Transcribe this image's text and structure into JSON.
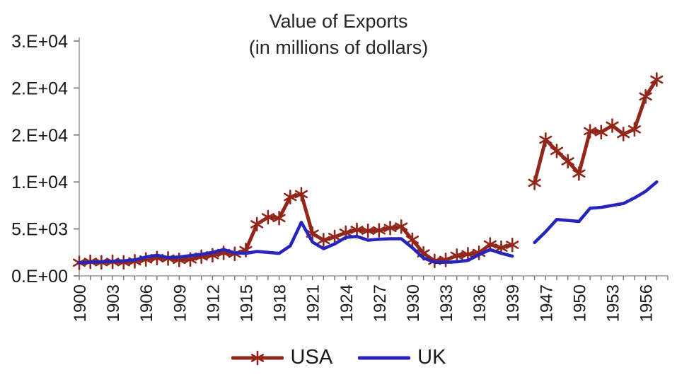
{
  "title": {
    "line1": "Value of Exports",
    "line2": "(in millions of dollars)"
  },
  "legend": [
    {
      "label": "USA",
      "color": "#93261A",
      "marker": "star"
    },
    {
      "label": "UK",
      "color": "#2525BE",
      "marker": "line"
    }
  ],
  "colors": {
    "usa_series": "#93261A",
    "uk_series": "#2525BE",
    "axis_line": "#9a9a9a",
    "tick_mark": "#777777",
    "label_text": "#1a1a1a"
  },
  "chart_data": {
    "type": "line",
    "title": "Value of Exports",
    "subtitle": "(in millions of dollars)",
    "xlabel": "",
    "ylabel": "",
    "grid": false,
    "legend_position": "bottom-center",
    "x_label_every": 3,
    "x_categories": [
      "1900",
      "1901",
      "1902",
      "1903",
      "1904",
      "1905",
      "1906",
      "1907",
      "1908",
      "1909",
      "1910",
      "1911",
      "1912",
      "1913",
      "1914",
      "1915",
      "1916",
      "1917",
      "1918",
      "1919",
      "1920",
      "1921",
      "1922",
      "1923",
      "1924",
      "1925",
      "1926",
      "1927",
      "1928",
      "1929",
      "1930",
      "1931",
      "1932",
      "1933",
      "1934",
      "1935",
      "1936",
      "1937",
      "1938",
      "1939",
      "1945",
      "1946",
      "1947",
      "1948",
      "1949",
      "1950",
      "1951",
      "1952",
      "1953",
      "1954",
      "1955",
      "1956",
      "1957",
      "1958"
    ],
    "y_axis": {
      "min": 0,
      "max": 25000,
      "ticks": [
        0,
        5000,
        10000,
        15000,
        20000,
        25000
      ],
      "tick_labels": [
        "0.E+00",
        "5.E+03",
        "1.E+04",
        "2.E+04",
        "2.E+04",
        "3.E+04"
      ]
    },
    "series": [
      {
        "name": "USA",
        "color": "#93261A",
        "marker": "star",
        "stroke_width": 5,
        "values": [
          1400,
          1500,
          1450,
          1500,
          1450,
          1550,
          1750,
          1900,
          1850,
          1700,
          1750,
          2050,
          2200,
          2450,
          2350,
          2750,
          5500,
          6250,
          6150,
          8400,
          8700,
          4500,
          3800,
          4150,
          4600,
          4900,
          4800,
          4850,
          5100,
          5250,
          3850,
          2400,
          1600,
          1700,
          2150,
          2300,
          2450,
          3350,
          3000,
          3300,
          null,
          9900,
          14500,
          13300,
          12200,
          10900,
          15400,
          15300,
          16000,
          15100,
          15600,
          19100,
          20900,
          null
        ]
      },
      {
        "name": "UK",
        "color": "#2525BE",
        "marker": "none",
        "stroke_width": 4.5,
        "values": [
          1400,
          1450,
          1500,
          1550,
          1600,
          1700,
          2000,
          2200,
          1950,
          2000,
          2150,
          2300,
          2500,
          2800,
          2450,
          2400,
          2600,
          2500,
          2400,
          3200,
          5700,
          3600,
          2900,
          3400,
          4100,
          4200,
          3800,
          3900,
          3950,
          3950,
          3000,
          1900,
          1450,
          1450,
          1500,
          1650,
          2250,
          2800,
          2400,
          2100,
          null,
          3550,
          4700,
          6000,
          5900,
          5800,
          7200,
          7300,
          7500,
          7700,
          8300,
          9000,
          10000,
          null
        ]
      }
    ]
  }
}
